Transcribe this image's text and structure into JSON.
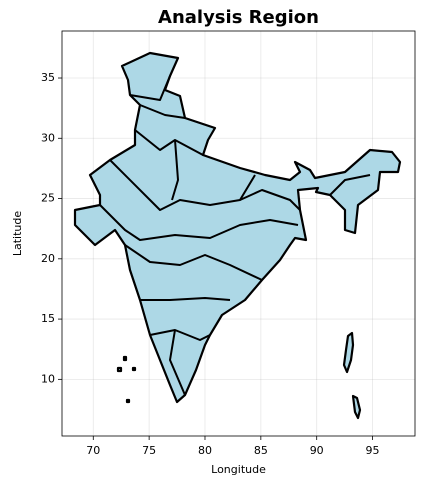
{
  "chart_data": {
    "type": "map",
    "title": "Analysis Region",
    "x_label": "Longitude",
    "y_label": "Latitude",
    "xlim": [
      67.2,
      98.8
    ],
    "ylim": [
      5.3,
      38.9
    ],
    "xticks": [
      70,
      75,
      80,
      85,
      90,
      95
    ],
    "yticks": [
      10,
      15,
      20,
      25,
      30,
      35
    ],
    "grid": true,
    "color": "#add8e6",
    "edge_color": "#000000"
  }
}
